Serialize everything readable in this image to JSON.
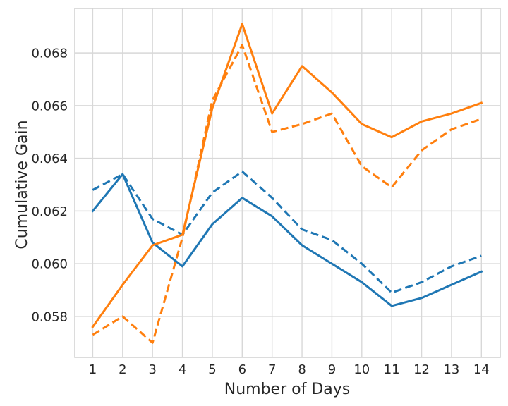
{
  "chart_data": {
    "type": "line",
    "title": "",
    "xlabel": "Number of Days",
    "ylabel": "Cumulative Gain",
    "x": [
      1,
      2,
      3,
      4,
      5,
      6,
      7,
      8,
      9,
      10,
      11,
      12,
      13,
      14
    ],
    "xtick_labels": [
      "1",
      "2",
      "3",
      "4",
      "5",
      "6",
      "7",
      "8",
      "9",
      "10",
      "11",
      "12",
      "13",
      "14"
    ],
    "ytick_values": [
      0.058,
      0.06,
      0.062,
      0.064,
      0.066,
      0.068
    ],
    "ytick_labels": [
      "0.058",
      "0.060",
      "0.062",
      "0.064",
      "0.066",
      "0.068"
    ],
    "xlim": [
      0.4,
      14.63
    ],
    "ylim": [
      0.056445,
      0.069689
    ],
    "grid": true,
    "legend": "none",
    "series": [
      {
        "name": "blue-dashed",
        "color": "#1f77b4",
        "line_style": "dashed",
        "values": [
          0.0628,
          0.0634,
          0.0617,
          0.0611,
          0.0627,
          0.0635,
          0.0625,
          0.0613,
          0.0609,
          0.06,
          0.0589,
          0.0593,
          0.0599,
          0.0603
        ]
      },
      {
        "name": "blue-solid",
        "color": "#1f77b4",
        "line_style": "solid",
        "values": [
          0.062,
          0.0634,
          0.0608,
          0.0599,
          0.0615,
          0.0625,
          0.0618,
          0.0607,
          0.06,
          0.0593,
          0.0584,
          0.0587,
          0.0592,
          0.0597
        ]
      },
      {
        "name": "orange-solid",
        "color": "#ff7f0e",
        "line_style": "solid",
        "values": [
          0.0576,
          0.0592,
          0.0607,
          0.0611,
          0.0659,
          0.0691,
          0.0657,
          0.0675,
          0.0665,
          0.0653,
          0.0648,
          0.0654,
          0.0657,
          0.0661
        ]
      },
      {
        "name": "orange-dashed",
        "color": "#ff7f0e",
        "line_style": "dashed",
        "values": [
          0.0573,
          0.058,
          0.057,
          0.061,
          0.0662,
          0.0683,
          0.065,
          0.0653,
          0.0657,
          0.0637,
          0.0629,
          0.0643,
          0.0651,
          0.0655
        ]
      }
    ],
    "colors": {
      "grid": "#d8d8d8",
      "plot_border": "#d4d4d4",
      "text": "#262626",
      "background": "#ffffff"
    }
  }
}
